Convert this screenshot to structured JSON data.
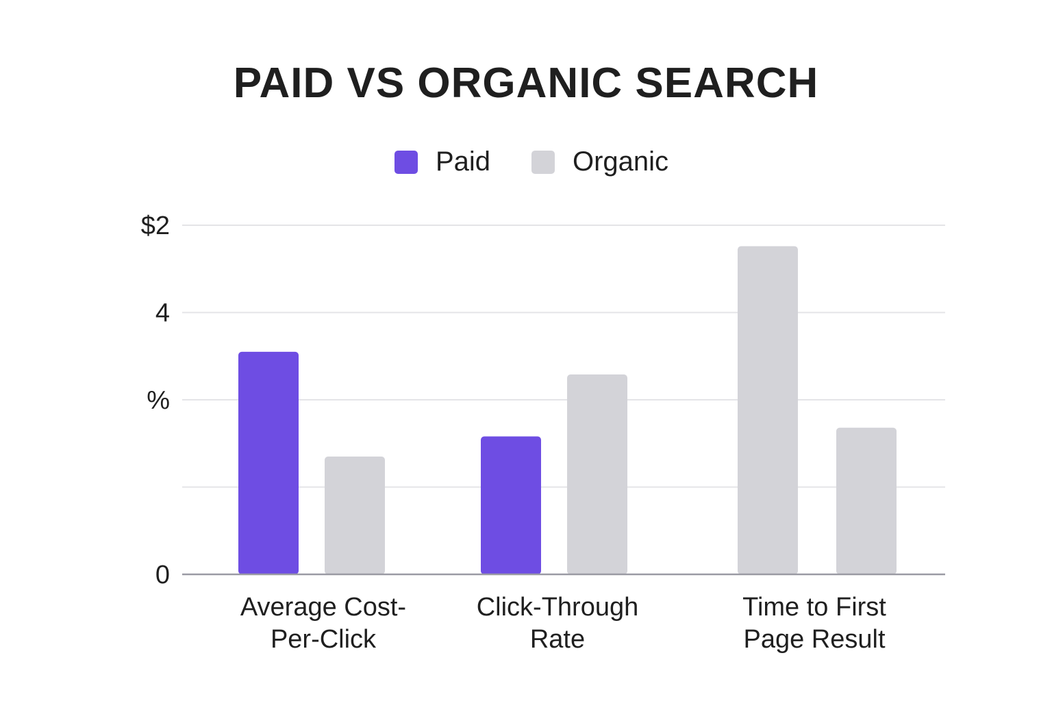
{
  "chart_data": {
    "type": "bar",
    "title": "PAID VS ORGANIC SEARCH",
    "categories": [
      [
        "Average Cost-",
        "Per-Click"
      ],
      [
        "Click-Through",
        "Rate"
      ],
      [
        "Time to First",
        "Page Result"
      ]
    ],
    "series": [
      {
        "name": "Paid",
        "color": "#6e4de3",
        "values": [
          2.55,
          1.58,
          null
        ]
      },
      {
        "name": "Organic",
        "color": "#d3d3d8",
        "values": [
          1.35,
          2.29,
          3.76
        ]
      },
      {
        "name": "Organic",
        "color": "#d3d3d8",
        "values": [
          null,
          null,
          1.68
        ]
      }
    ],
    "y_ticks": [
      {
        "value": 0,
        "label": "0"
      },
      {
        "value": 1,
        "label": ""
      },
      {
        "value": 2,
        "label": "%"
      },
      {
        "value": 3,
        "label": "4"
      },
      {
        "value": 4,
        "label": "$2"
      }
    ],
    "ylim": [
      0,
      4
    ],
    "legend": [
      {
        "label": "Paid",
        "color": "#6e4de3"
      },
      {
        "label": "Organic",
        "color": "#d3d3d8"
      }
    ],
    "legend_position": "top-center",
    "grid": true
  }
}
